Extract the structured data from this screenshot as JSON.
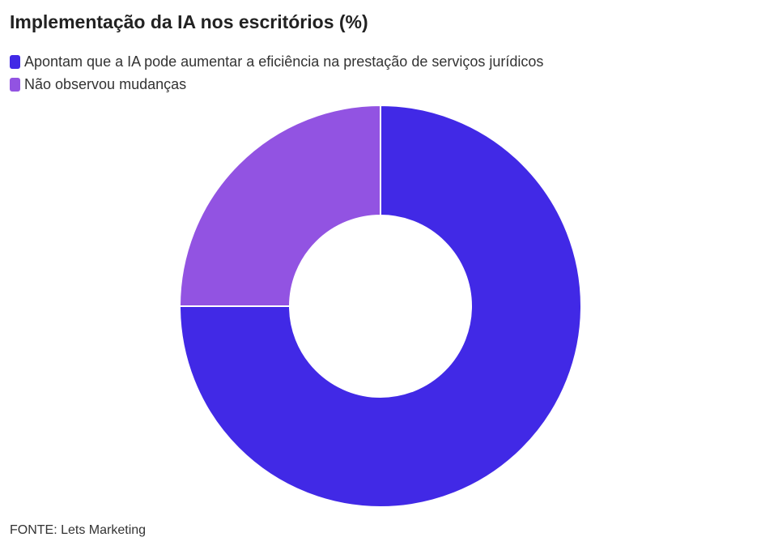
{
  "chart_data": {
    "type": "pie",
    "donut": true,
    "title": "Implementação da IA nos escritórios (%)",
    "categories": [
      "Apontam que a IA pode aumentar a eficiência na prestação de serviços jurídicos",
      "Não observou mudanças"
    ],
    "values": [
      75,
      25
    ],
    "colors": [
      "#4129e6",
      "#9253e2"
    ],
    "legend_position": "top-left",
    "source": "FONTE: Lets Marketing"
  }
}
